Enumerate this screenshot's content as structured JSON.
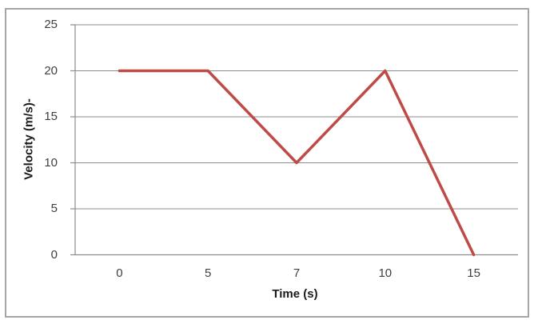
{
  "chart_data": {
    "type": "line",
    "title": "",
    "xlabel": "Time (s)",
    "ylabel": "Velocity (m/s)-",
    "x_axis_type": "category",
    "categories": [
      "0",
      "5",
      "7",
      "10",
      "15"
    ],
    "series": [
      {
        "name": "Velocity",
        "values": [
          20,
          20,
          10,
          20,
          0
        ],
        "color": "#be4b48"
      }
    ],
    "y_ticks": [
      0,
      5,
      10,
      15,
      20,
      25
    ],
    "ylim": [
      0,
      25
    ],
    "grid": true,
    "legend": "none",
    "colors": {
      "line": "#be4b48",
      "gridline": "#8c8c8c",
      "axis": "#8c8c8c",
      "tick_text": "#404040",
      "title_text": "#1a1a1a",
      "frame_border": "#a6a6a6",
      "background": "#ffffff"
    }
  }
}
